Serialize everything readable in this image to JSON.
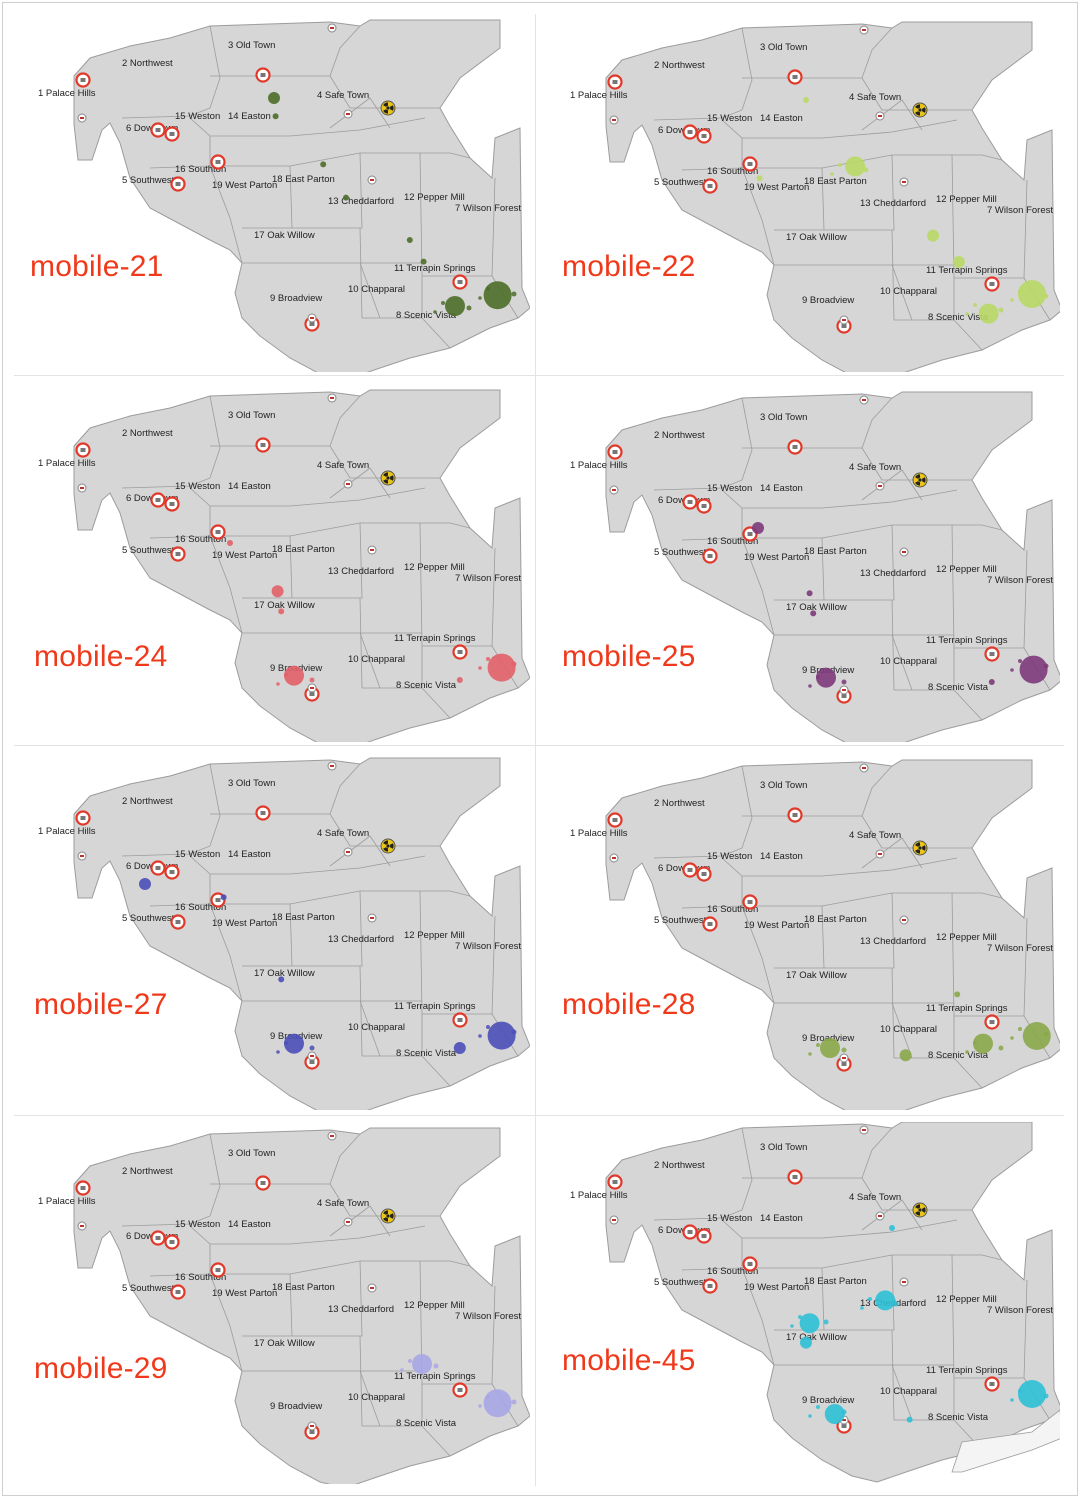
{
  "neighborhoods": [
    {
      "id": "1",
      "name": "Palace Hills",
      "label": "1 Palace Hills"
    },
    {
      "id": "2",
      "name": "Northwest",
      "label": "2 Northwest"
    },
    {
      "id": "3",
      "name": "Old Town",
      "label": "3 Old Town"
    },
    {
      "id": "4",
      "name": "Safe Town",
      "label": "4 Safe Town"
    },
    {
      "id": "5",
      "name": "Southwest",
      "label": "5 Southwest"
    },
    {
      "id": "6",
      "name": "Downtown",
      "label": "6 Downtown"
    },
    {
      "id": "7",
      "name": "Wilson Forest",
      "label": "7 Wilson Forest"
    },
    {
      "id": "8",
      "name": "Scenic Vista",
      "label": "8 Scenic Vista"
    },
    {
      "id": "9",
      "name": "Broadview",
      "label": "9 Broadview"
    },
    {
      "id": "10",
      "name": "Chapparal",
      "label": "10 Chapparal"
    },
    {
      "id": "11",
      "name": "Terrapin Springs",
      "label": "11 Terrapin Springs"
    },
    {
      "id": "12",
      "name": "Pepper Mill",
      "label": "12 Pepper Mill"
    },
    {
      "id": "13",
      "name": "Cheddarford",
      "label": "13 Cheddarford"
    },
    {
      "id": "14",
      "name": "Easton",
      "label": "14 Easton"
    },
    {
      "id": "15",
      "name": "Weston",
      "label": "15 Weston"
    },
    {
      "id": "16",
      "name": "Southton",
      "label": "16 Southton"
    },
    {
      "id": "17",
      "name": "Oak Willow",
      "label": "17 Oak Willow"
    },
    {
      "id": "18",
      "name": "East Parton",
      "label": "18 East Parton"
    },
    {
      "id": "19",
      "name": "West Parton",
      "label": "19 West Parton"
    }
  ],
  "icons": {
    "hospital": "hospital-icon",
    "shelter": "shelter-icon",
    "nuclear_plant": "radiation-icon"
  },
  "colors": {
    "map_fill": "#d6d6d6",
    "boundary": "#9c9c9c",
    "title": "#f0391b",
    "hospital_ring": "#e0392a",
    "nuclear_fill": "#e8c51a"
  },
  "panels": [
    {
      "title": "mobile-21",
      "sensor": "mobile-21",
      "color": "#4e6e2a",
      "readings": [
        {
          "near": "3 Old Town",
          "size": "medium"
        },
        {
          "near": "14 Easton",
          "size": "small"
        },
        {
          "near": "18 East Parton",
          "size": "small"
        },
        {
          "near": "13 Cheddarford",
          "size": "small"
        },
        {
          "near": "12 Pepper Mill",
          "size": "small"
        },
        {
          "near": "11 Terrapin Springs",
          "size": "small"
        },
        {
          "near": "8 Scenic Vista",
          "size": "large"
        },
        {
          "near": "7 Wilson Forest",
          "size": "very large"
        }
      ]
    },
    {
      "title": "mobile-22",
      "sensor": "mobile-22",
      "color": "#b9d966",
      "readings": [
        {
          "near": "3 Old Town",
          "size": "small"
        },
        {
          "near": "16 Southton",
          "size": "small"
        },
        {
          "near": "18 East Parton",
          "size": "large"
        },
        {
          "near": "12 Pepper Mill",
          "size": "medium"
        },
        {
          "near": "11 Terrapin Springs",
          "size": "medium"
        },
        {
          "near": "8 Scenic Vista",
          "size": "large"
        },
        {
          "near": "7 Wilson Forest",
          "size": "very large"
        }
      ]
    },
    {
      "title": "mobile-24",
      "sensor": "mobile-24",
      "color": "#e36068",
      "readings": [
        {
          "near": "16 Southton",
          "size": "small"
        },
        {
          "near": "19 West Parton",
          "size": "medium"
        },
        {
          "near": "17 Oak Willow",
          "size": "small"
        },
        {
          "near": "9 Broadview",
          "size": "large"
        },
        {
          "near": "8 Scenic Vista",
          "size": "small"
        },
        {
          "near": "7 Wilson Forest",
          "size": "very large"
        }
      ]
    },
    {
      "title": "mobile-25",
      "sensor": "mobile-25",
      "color": "#7d3a7a",
      "readings": [
        {
          "near": "5 Southwest",
          "size": "medium"
        },
        {
          "near": "19 West Parton",
          "size": "small"
        },
        {
          "near": "17 Oak Willow",
          "size": "small"
        },
        {
          "near": "9 Broadview",
          "size": "large"
        },
        {
          "near": "8 Scenic Vista",
          "size": "small"
        },
        {
          "near": "7 Wilson Forest",
          "size": "very large"
        }
      ]
    },
    {
      "title": "mobile-27",
      "sensor": "mobile-27",
      "color": "#4b4fb8",
      "readings": [
        {
          "near": "6 Downtown",
          "size": "medium"
        },
        {
          "near": "5 Southwest",
          "size": "small"
        },
        {
          "near": "17 Oak Willow",
          "size": "small"
        },
        {
          "near": "9 Broadview",
          "size": "large"
        },
        {
          "near": "8 Scenic Vista",
          "size": "medium"
        },
        {
          "near": "7 Wilson Forest",
          "size": "very large"
        }
      ]
    },
    {
      "title": "mobile-28",
      "sensor": "mobile-28",
      "color": "#8aa84a",
      "readings": [
        {
          "near": "9 Broadview",
          "size": "large"
        },
        {
          "near": "10 Chapparal",
          "size": "medium"
        },
        {
          "near": "11 Terrapin Springs",
          "size": "small"
        },
        {
          "near": "8 Scenic Vista",
          "size": "large"
        },
        {
          "near": "7 Wilson Forest",
          "size": "very large"
        }
      ]
    },
    {
      "title": "mobile-29",
      "sensor": "mobile-29",
      "color": "#a8a6e6",
      "readings": [
        {
          "near": "11 Terrapin Springs",
          "size": "large"
        },
        {
          "near": "7 Wilson Forest",
          "size": "very large"
        }
      ]
    },
    {
      "title": "mobile-45",
      "sensor": "mobile-45",
      "color": "#2ec0d6",
      "readings": [
        {
          "near": "4 Safe Town",
          "size": "small"
        },
        {
          "near": "19 West Parton",
          "size": "large"
        },
        {
          "near": "13 Cheddarford",
          "size": "large"
        },
        {
          "near": "17 Oak Willow",
          "size": "medium"
        },
        {
          "near": "9 Broadview",
          "size": "large"
        },
        {
          "near": "10 Chapparal",
          "size": "small"
        },
        {
          "near": "7 Wilson Forest",
          "size": "very large"
        }
      ]
    }
  ]
}
